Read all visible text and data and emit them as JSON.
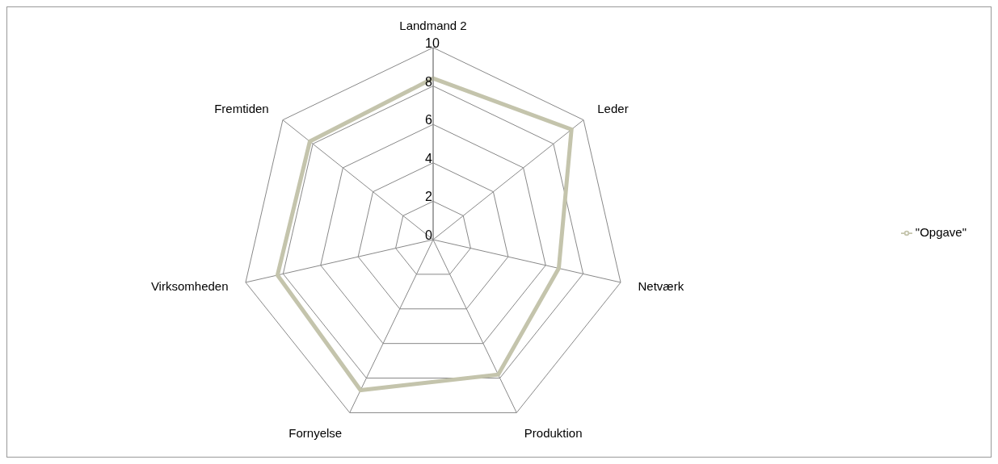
{
  "chart_data": {
    "type": "radar",
    "categories": [
      "Landmand 2",
      "Leder",
      "Netværk",
      "Produktion",
      "Fornyelse",
      "Virksomheden",
      "Fremtiden"
    ],
    "series": [
      {
        "name": "\"Opgave\"",
        "color": "#c4c4ac",
        "values": [
          8.4,
          9.2,
          6.7,
          7.8,
          8.7,
          8.3,
          8.2
        ]
      }
    ],
    "ylim": [
      0,
      10
    ],
    "yticks": [
      0,
      2,
      4,
      6,
      8,
      10
    ],
    "legend": "right"
  }
}
